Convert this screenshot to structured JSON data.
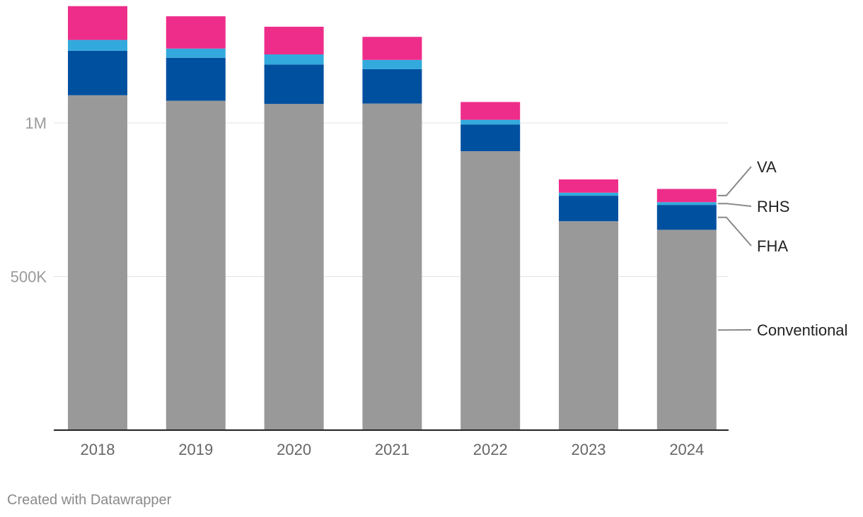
{
  "chart_data": {
    "type": "bar",
    "stacked": true,
    "categories": [
      "2018",
      "2019",
      "2020",
      "2021",
      "2022",
      "2023",
      "2024"
    ],
    "series": [
      {
        "name": "Conventional",
        "color": "#999999",
        "values": [
          1090000,
          1072000,
          1062000,
          1063000,
          908000,
          680000,
          652000
        ]
      },
      {
        "name": "FHA",
        "color": "#0050a0",
        "values": [
          145000,
          140000,
          128000,
          112000,
          87000,
          83000,
          81000
        ]
      },
      {
        "name": "RHS",
        "color": "#33aadd",
        "values": [
          35000,
          30000,
          33000,
          30000,
          15000,
          10000,
          9000
        ]
      },
      {
        "name": "VA",
        "color": "#ee2d8a",
        "values": [
          110000,
          105000,
          90000,
          75000,
          58000,
          43000,
          43000
        ]
      }
    ],
    "y_ticks": [
      {
        "value": 500000,
        "label": "500K"
      },
      {
        "value": 1000000,
        "label": "1M"
      }
    ],
    "ylim": [
      0,
      1400000
    ],
    "legend": "right, inline labels",
    "credit": "Created with Datawrapper"
  }
}
